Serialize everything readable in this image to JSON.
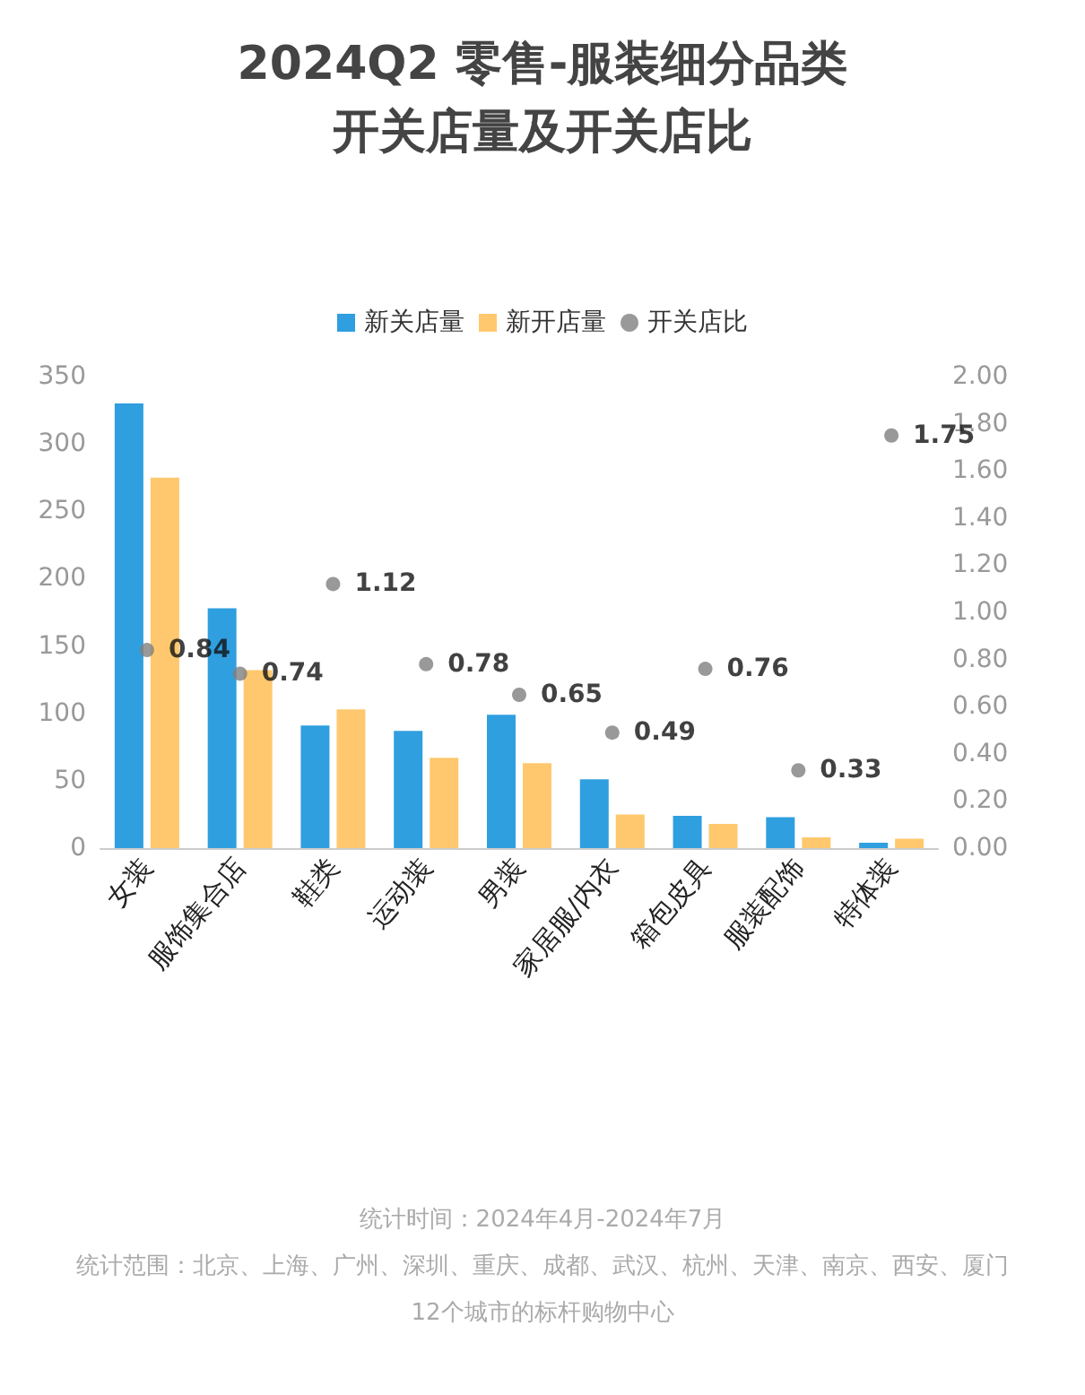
{
  "chart_data": {
    "type": "bar",
    "title": "2024Q2 零售-服装细分品类",
    "subtitle": "开关店量及开关店比",
    "categories": [
      "女装",
      "服饰集合店",
      "鞋类",
      "运动装",
      "男装",
      "家居服/内衣",
      "箱包皮具",
      "服装配饰",
      "特体装"
    ],
    "series": [
      {
        "name": "新关店量",
        "color": "#2f9fe0",
        "values": [
          330,
          178,
          91,
          87,
          99,
          51,
          24,
          23,
          4
        ]
      },
      {
        "name": "新开店量",
        "color": "#ffc86e",
        "values": [
          275,
          132,
          103,
          67,
          63,
          25,
          18,
          8,
          7
        ]
      },
      {
        "name": "开关店比",
        "type": "scatter",
        "axis": "y2",
        "color": "#7f7f7f",
        "marker": "circle",
        "data_labels": true,
        "values": [
          0.84,
          0.74,
          1.12,
          0.78,
          0.65,
          0.49,
          0.76,
          0.33,
          1.75
        ]
      }
    ],
    "ylim": [
      0,
      350
    ],
    "yticks": [
      0,
      50,
      100,
      150,
      200,
      250,
      300,
      350
    ],
    "y2lim": [
      0,
      2
    ],
    "y2ticks": [
      {
        "value": 0,
        "label": "0.00"
      },
      {
        "value": 0.2,
        "label": "0.20"
      },
      {
        "value": 0.4,
        "label": "0.40"
      },
      {
        "value": 0.6,
        "label": "0.60"
      },
      {
        "value": 0.8,
        "label": "0.80"
      },
      {
        "value": 1,
        "label": "1.00"
      },
      {
        "value": 1.2,
        "label": "1.20"
      },
      {
        "value": 1.4,
        "label": "1.40"
      },
      {
        "value": 1.6,
        "label": "1.60"
      },
      {
        "value": 1.8,
        "label": "1.80"
      },
      {
        "value": 2,
        "label": "2.00"
      }
    ],
    "grid": false,
    "legend": "top",
    "annotations": [
      "统计时间：2024年4月-2024年7月",
      "统计范围：北京、上海、广州、深圳、重庆、成都、武汉、杭州、天津、南京、西安、厦门12个城市的标杆购物中心"
    ]
  }
}
